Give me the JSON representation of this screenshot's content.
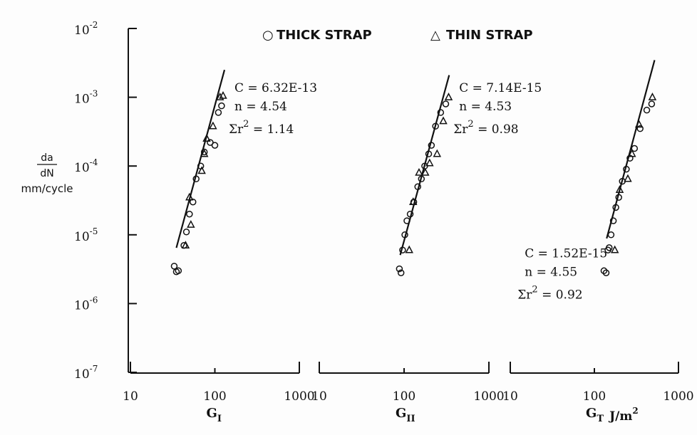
{
  "legend": {
    "thick_symbol": "○",
    "thick_label": "THICK STRAP",
    "thin_symbol": "△",
    "thin_label": "THIN STRAP"
  },
  "y_axis": {
    "label_line1": "da",
    "label_line2": "dN",
    "label_line3": "mm/cycle",
    "tick_base": "10",
    "tick_exponents": [
      "-2",
      "-3",
      "-4",
      "-5",
      "-6",
      "-7"
    ]
  },
  "x_tick_labels": [
    "10",
    "100",
    "1000"
  ],
  "colors": {
    "ink": "#111111",
    "background": "#fdfdfd"
  },
  "chart_data": [
    {
      "type": "scatter",
      "panel": "I",
      "xlabel_main": "G",
      "xlabel_sub": "I",
      "xlabel_unit": "",
      "x_scale": "log",
      "y_scale": "log",
      "xlim": [
        10,
        1000
      ],
      "ylim": [
        1e-07,
        0.01
      ],
      "fit": {
        "C_text": "C = 6.32E-13",
        "n_text": "n = 4.54",
        "r2_prefix": "Σr",
        "r2_exp": "2",
        "r2_value": " = 1.14",
        "C": 6.32e-13,
        "n": 4.54,
        "x_range": [
          35,
          130
        ]
      },
      "series": [
        {
          "name": "THICK STRAP",
          "marker": "circle",
          "x": [
            33,
            35,
            37,
            43,
            46,
            50,
            55,
            60,
            68,
            75,
            88,
            100,
            110,
            120
          ],
          "y": [
            3.5e-06,
            2.9e-06,
            3e-06,
            7e-06,
            1.1e-05,
            2e-05,
            3e-05,
            6.5e-05,
            0.0001,
            0.00016,
            0.00022,
            0.0002,
            0.0006,
            0.00075
          ]
        },
        {
          "name": "THIN STRAP",
          "marker": "triangle",
          "x": [
            45,
            50,
            52,
            70,
            75,
            80,
            95,
            115,
            125
          ],
          "y": [
            7e-06,
            3.5e-05,
            1.4e-05,
            8.5e-05,
            0.00015,
            0.00025,
            0.00038,
            0.001,
            0.00105
          ]
        }
      ]
    },
    {
      "type": "scatter",
      "panel": "II",
      "xlabel_main": "G",
      "xlabel_sub": "II",
      "xlabel_unit": "",
      "x_scale": "log",
      "y_scale": "log",
      "xlim": [
        10,
        1000
      ],
      "ylim": [
        1e-07,
        0.01
      ],
      "fit": {
        "C_text": "C = 7.14E-15",
        "n_text": "n = 4.53",
        "r2_prefix": "Σr",
        "r2_exp": "2",
        "r2_value": " = 0.98",
        "C": 7.14e-15,
        "n": 4.53,
        "x_range": [
          90,
          340
        ]
      },
      "series": [
        {
          "name": "THICK STRAP",
          "marker": "circle",
          "x": [
            88,
            92,
            96,
            102,
            108,
            118,
            130,
            145,
            160,
            175,
            195,
            210,
            235,
            270,
            310
          ],
          "y": [
            3.2e-06,
            2.8e-06,
            6e-06,
            1e-05,
            1.6e-05,
            2e-05,
            3e-05,
            5e-05,
            6.5e-05,
            0.0001,
            0.00015,
            0.0002,
            0.00038,
            0.0006,
            0.0008
          ]
        },
        {
          "name": "THIN STRAP",
          "marker": "triangle",
          "x": [
            115,
            128,
            150,
            178,
            200,
            245,
            290,
            335
          ],
          "y": [
            6e-06,
            3e-05,
            8e-05,
            8e-05,
            0.00011,
            0.00015,
            0.00045,
            0.001
          ]
        }
      ]
    },
    {
      "type": "scatter",
      "panel": "III",
      "xlabel_main": "G",
      "xlabel_sub": "T",
      "xlabel_unit": "J/m",
      "xlabel_unit_exp": "2",
      "x_scale": "log",
      "y_scale": "log",
      "xlim": [
        10,
        1000
      ],
      "ylim": [
        1e-07,
        0.01
      ],
      "fit": {
        "C_text": "C = 1.52E-15",
        "n_text": "n = 4.55",
        "r2_prefix": "Σr",
        "r2_exp": "2",
        "r2_value": " = 0.92",
        "C": 1.52e-15,
        "n": 4.55,
        "x_range": [
          140,
          520
        ]
      },
      "series": [
        {
          "name": "THICK STRAP",
          "marker": "circle",
          "x": [
            130,
            138,
            145,
            150,
            158,
            168,
            180,
            195,
            215,
            240,
            265,
            300,
            350,
            420,
            480
          ],
          "y": [
            3e-06,
            2.8e-06,
            6e-06,
            6.5e-06,
            1e-05,
            1.6e-05,
            2.5e-05,
            3.5e-05,
            6e-05,
            9e-05,
            0.00013,
            0.00018,
            0.00035,
            0.00065,
            0.0008
          ]
        },
        {
          "name": "THIN STRAP",
          "marker": "triangle",
          "x": [
            175,
            200,
            250,
            280,
            340,
            490
          ],
          "y": [
            6e-06,
            4.5e-05,
            6.5e-05,
            0.00015,
            0.0004,
            0.001
          ]
        }
      ]
    }
  ]
}
